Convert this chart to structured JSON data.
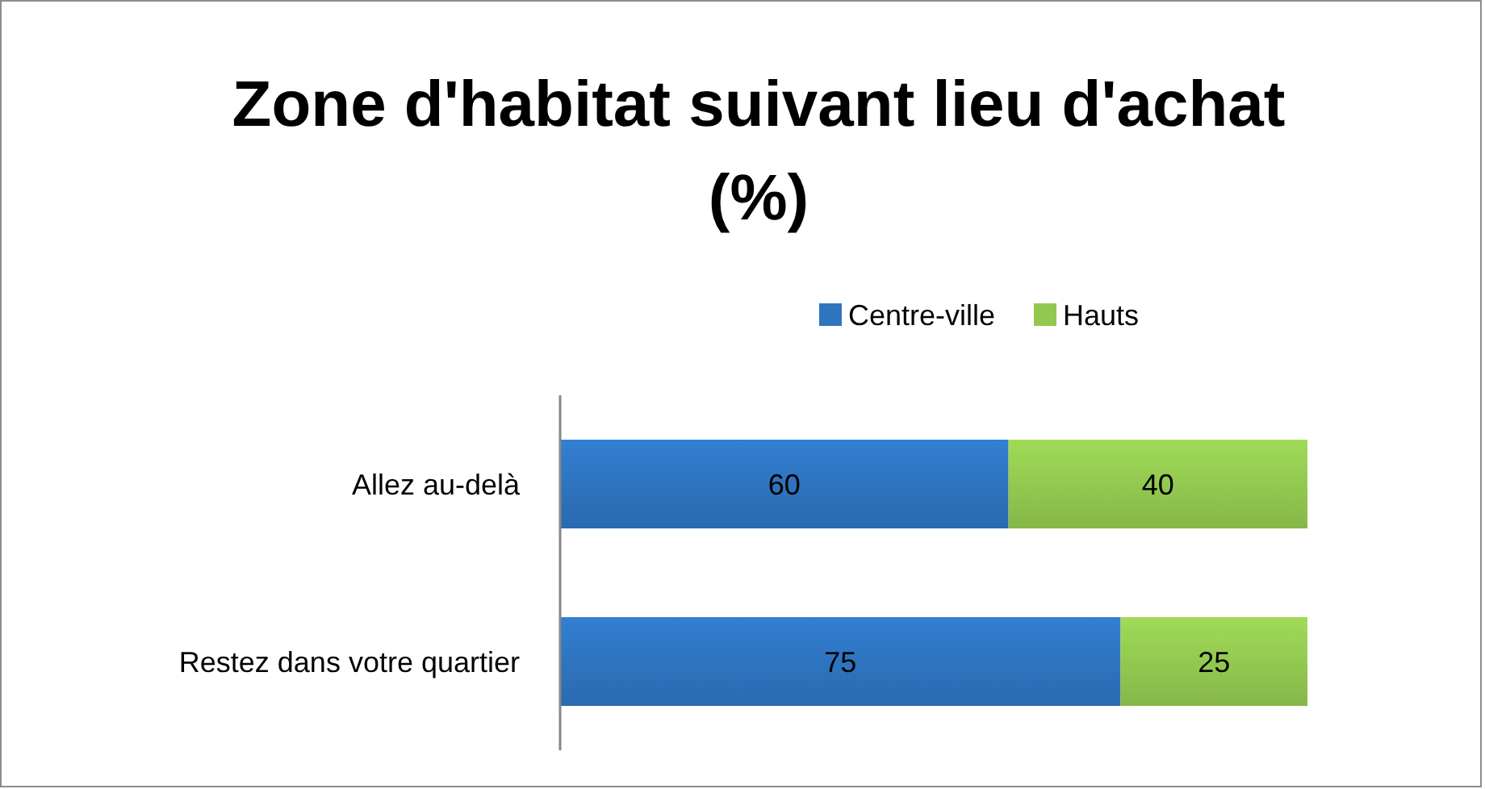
{
  "chart_data": {
    "type": "bar",
    "title": "Zone d'habitat suivant lieu d'achat (%)",
    "orientation": "horizontal",
    "stacked": true,
    "categories": [
      "Allez au-delà",
      "Restez dans votre quartier"
    ],
    "series": [
      {
        "name": "Centre-ville",
        "color": "#2e74bf",
        "values": [
          60,
          75
        ]
      },
      {
        "name": "Hauts",
        "color": "#92c850",
        "values": [
          40,
          25
        ]
      }
    ],
    "xlim": [
      0,
      100
    ],
    "data_labels": true,
    "legend": "top",
    "grid": false,
    "tick_labels": "y"
  }
}
